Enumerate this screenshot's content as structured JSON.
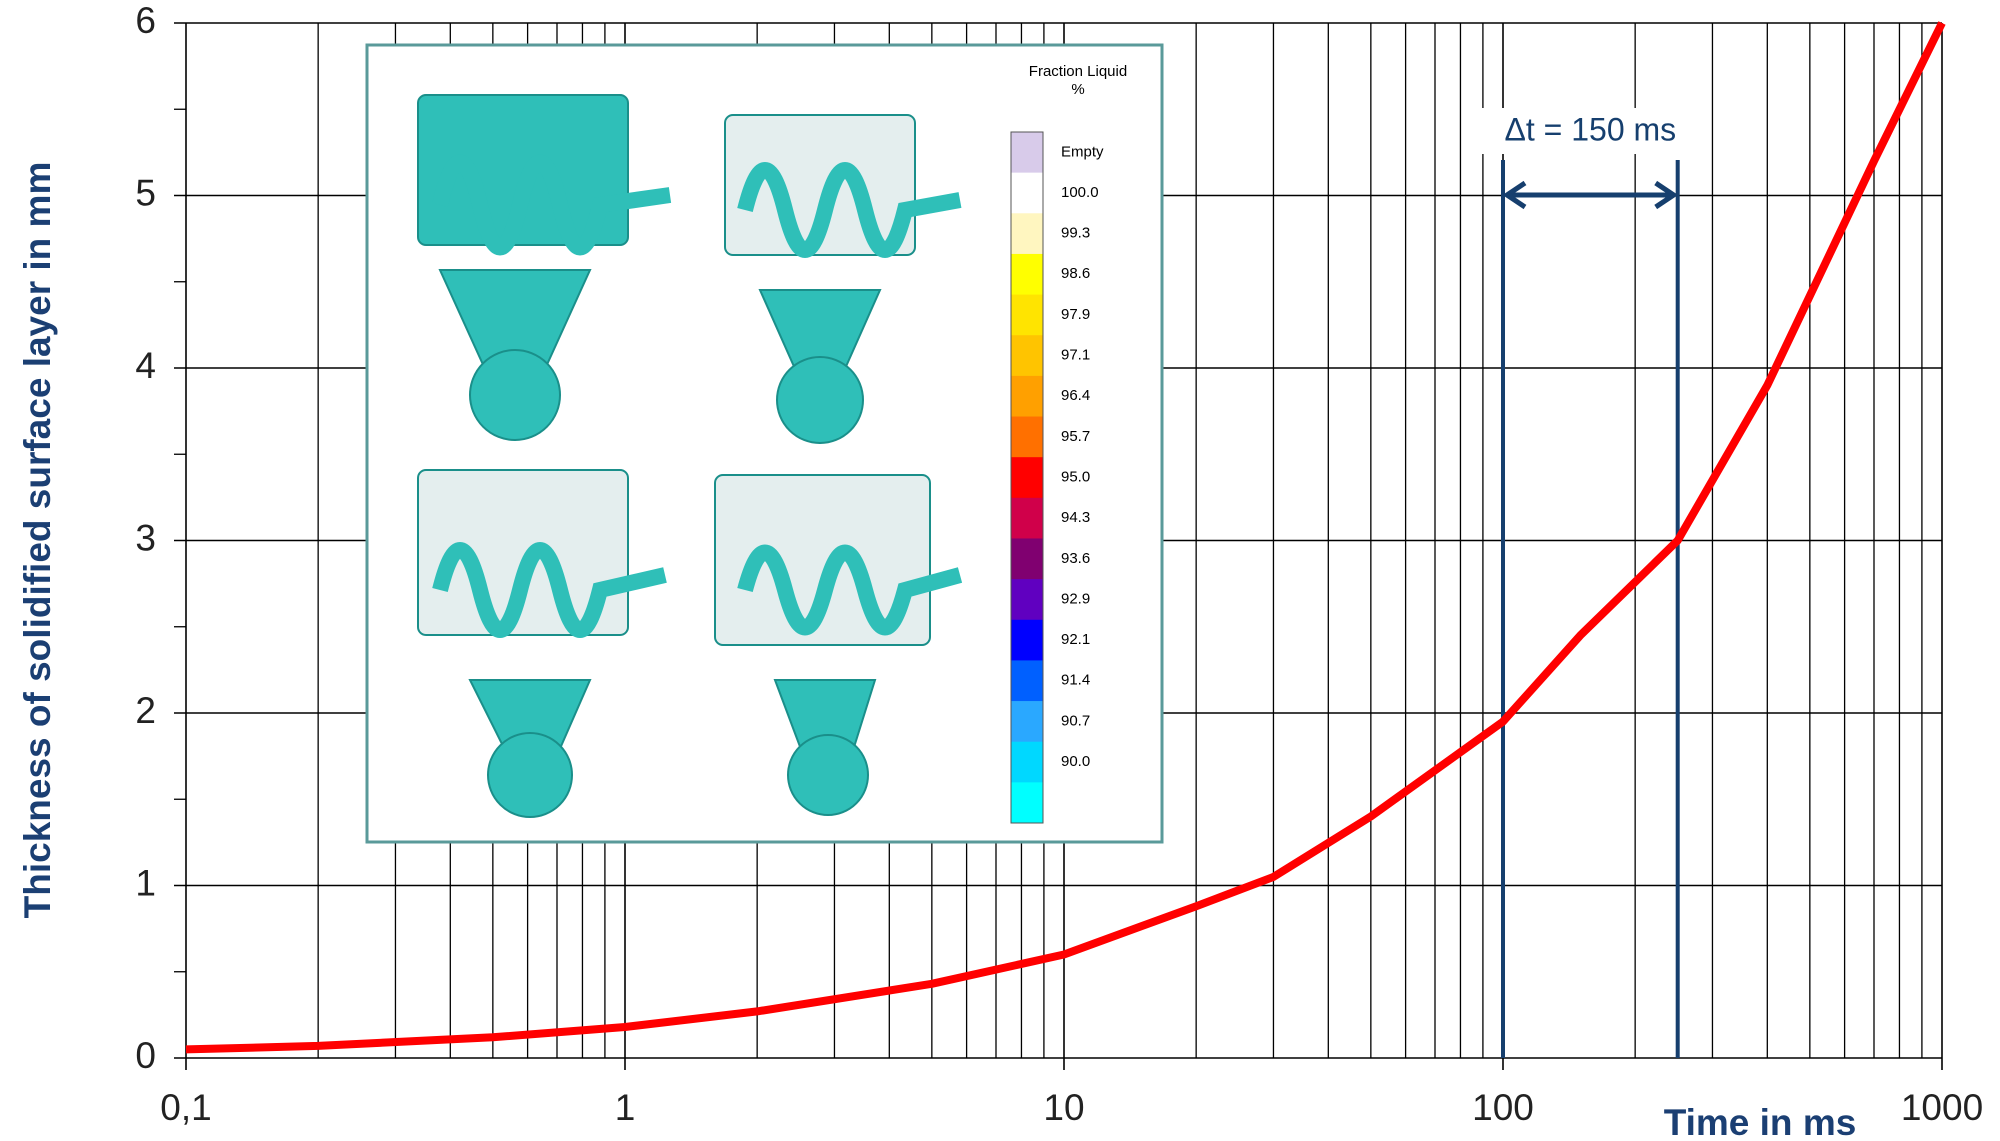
{
  "chart_data": {
    "type": "line",
    "x_label": "Time in ms",
    "y_label": "Thickness of solidified surface layer in mm",
    "log_x": true,
    "grid": true,
    "xlim": [
      0.1,
      1000
    ],
    "ylim": [
      0,
      6
    ],
    "xticks": [
      {
        "value": 0.1,
        "label": "0,1"
      },
      1,
      10,
      100,
      1000
    ],
    "yticks": [
      0,
      1,
      2,
      3,
      4,
      5,
      6
    ],
    "series": [
      {
        "color": "#ff0000",
        "x": [
          0.1,
          0.2,
          0.5,
          1,
          2,
          5,
          10,
          20,
          30,
          50,
          100,
          150,
          250,
          400,
          700,
          1000
        ],
        "values": [
          0.05,
          0.07,
          0.12,
          0.18,
          0.27,
          0.43,
          0.6,
          0.88,
          1.05,
          1.4,
          1.95,
          2.45,
          3.0,
          3.9,
          5.2,
          6.0
        ]
      }
    ],
    "annotation": {
      "text": "Δt = 150 ms",
      "x": [
        100,
        250
      ],
      "color": "#163f6e"
    },
    "inset": {
      "legend_title": "Fraction Liquid",
      "unit": "%",
      "labels": [
        "Empty",
        "100.0",
        "99.3",
        "98.6",
        "97.9",
        "97.1",
        "96.4",
        "95.7",
        "95.0",
        "94.3",
        "93.6",
        "92.9",
        "92.1",
        "91.4",
        "90.7",
        "90.0"
      ],
      "colors": [
        "#d8cbea",
        "#ffffff",
        "#fff6c0",
        "#ffff00",
        "#ffe400",
        "#ffc400",
        "#ffa000",
        "#ff7000",
        "#ff0000",
        "#d0004a",
        "#800070",
        "#6000c0",
        "#0000ff",
        "#0060ff",
        "#2aa8ff",
        "#00d8ff"
      ]
    }
  }
}
